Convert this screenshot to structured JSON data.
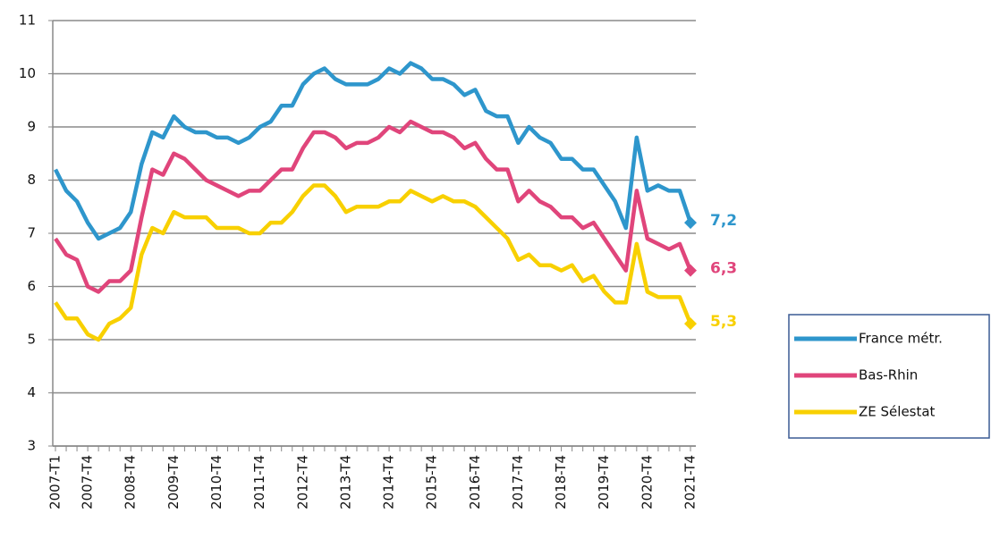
{
  "chart_data": {
    "type": "line",
    "categories": [
      "2007-T1",
      null,
      null,
      "2007-T4",
      null,
      null,
      null,
      "2008-T4",
      null,
      null,
      null,
      "2009-T4",
      null,
      null,
      null,
      "2010-T4",
      null,
      null,
      null,
      "2011-T4",
      null,
      null,
      null,
      "2012-T4",
      null,
      null,
      null,
      "2013-T4",
      null,
      null,
      null,
      "2014-T4",
      null,
      null,
      null,
      "2015-T4",
      null,
      null,
      null,
      "2016-T4",
      null,
      null,
      null,
      "2017-T4",
      null,
      null,
      null,
      "2018-T4",
      null,
      null,
      null,
      "2019-T4",
      null,
      null,
      null,
      "2020-T4",
      null,
      null,
      null,
      "2021-T4"
    ],
    "series": [
      {
        "name": "France métr.",
        "color": "#2e96cc",
        "values": [
          8.2,
          7.8,
          7.6,
          7.2,
          6.9,
          7.0,
          7.1,
          7.4,
          8.3,
          8.9,
          8.8,
          9.2,
          9.0,
          8.9,
          8.9,
          8.8,
          8.8,
          8.7,
          8.8,
          9.0,
          9.1,
          9.4,
          9.4,
          9.8,
          10.0,
          10.1,
          9.9,
          9.8,
          9.8,
          9.8,
          9.9,
          10.1,
          10.0,
          10.2,
          10.1,
          9.9,
          9.9,
          9.8,
          9.6,
          9.7,
          9.3,
          9.2,
          9.2,
          8.7,
          9.0,
          8.8,
          8.7,
          8.4,
          8.4,
          8.2,
          8.2,
          7.9,
          7.6,
          7.1,
          8.8,
          7.8,
          7.9,
          7.8,
          7.8,
          7.2
        ],
        "value_labels": [
          null,
          null,
          null,
          null,
          null,
          null,
          null,
          null,
          null,
          null,
          null,
          null,
          null,
          null,
          null,
          null,
          null,
          null,
          null,
          null,
          null,
          null,
          null,
          null,
          null,
          null,
          null,
          null,
          null,
          null,
          null,
          null,
          null,
          null,
          null,
          null,
          null,
          null,
          null,
          null,
          null,
          null,
          null,
          null,
          null,
          null,
          null,
          null,
          null,
          null,
          null,
          null,
          null,
          null,
          null,
          null,
          null,
          null,
          null,
          "7,2"
        ]
      },
      {
        "name": "Bas-Rhin",
        "color": "#e0457b",
        "values": [
          6.9,
          6.6,
          6.5,
          6.0,
          5.9,
          6.1,
          6.1,
          6.3,
          7.3,
          8.2,
          8.1,
          8.5,
          8.4,
          8.2,
          8.0,
          7.9,
          7.8,
          7.7,
          7.8,
          7.8,
          8.0,
          8.2,
          8.2,
          8.6,
          8.9,
          8.9,
          8.8,
          8.6,
          8.7,
          8.7,
          8.8,
          9.0,
          8.9,
          9.1,
          9.0,
          8.9,
          8.9,
          8.8,
          8.6,
          8.7,
          8.4,
          8.2,
          8.2,
          7.6,
          7.8,
          7.6,
          7.5,
          7.3,
          7.3,
          7.1,
          7.2,
          6.9,
          6.6,
          6.3,
          7.8,
          6.9,
          6.8,
          6.7,
          6.8,
          6.3
        ],
        "value_labels": [
          null,
          null,
          null,
          null,
          null,
          null,
          null,
          null,
          null,
          null,
          null,
          null,
          null,
          null,
          null,
          null,
          null,
          null,
          null,
          null,
          null,
          null,
          null,
          null,
          null,
          null,
          null,
          null,
          null,
          null,
          null,
          null,
          null,
          null,
          null,
          null,
          null,
          null,
          null,
          null,
          null,
          null,
          null,
          null,
          null,
          null,
          null,
          null,
          null,
          null,
          null,
          null,
          null,
          null,
          null,
          null,
          null,
          null,
          null,
          "6,3"
        ]
      },
      {
        "name": "ZE Sélestat",
        "color": "#f8d000",
        "values": [
          5.7,
          5.4,
          5.4,
          5.1,
          5.0,
          5.3,
          5.4,
          5.6,
          6.6,
          7.1,
          7.0,
          7.4,
          7.3,
          7.3,
          7.3,
          7.1,
          7.1,
          7.1,
          7.0,
          7.0,
          7.2,
          7.2,
          7.4,
          7.7,
          7.9,
          7.9,
          7.7,
          7.4,
          7.5,
          7.5,
          7.5,
          7.6,
          7.6,
          7.8,
          7.7,
          7.6,
          7.7,
          7.6,
          7.6,
          7.5,
          7.3,
          7.1,
          6.9,
          6.5,
          6.6,
          6.4,
          6.4,
          6.3,
          6.4,
          6.1,
          6.2,
          5.9,
          5.7,
          5.7,
          6.8,
          5.9,
          5.8,
          5.8,
          5.8,
          5.3
        ],
        "value_labels": [
          null,
          null,
          null,
          null,
          null,
          null,
          null,
          null,
          null,
          null,
          null,
          null,
          null,
          null,
          null,
          null,
          null,
          null,
          null,
          null,
          null,
          null,
          null,
          null,
          null,
          null,
          null,
          null,
          null,
          null,
          null,
          null,
          null,
          null,
          null,
          null,
          null,
          null,
          null,
          null,
          null,
          null,
          null,
          null,
          null,
          null,
          null,
          null,
          null,
          null,
          null,
          null,
          null,
          null,
          null,
          null,
          null,
          null,
          null,
          "5,3"
        ]
      }
    ],
    "ylim": [
      3,
      11
    ],
    "yticks": [
      3,
      4,
      5,
      6,
      7,
      8,
      9,
      10,
      11
    ],
    "grid": true
  }
}
